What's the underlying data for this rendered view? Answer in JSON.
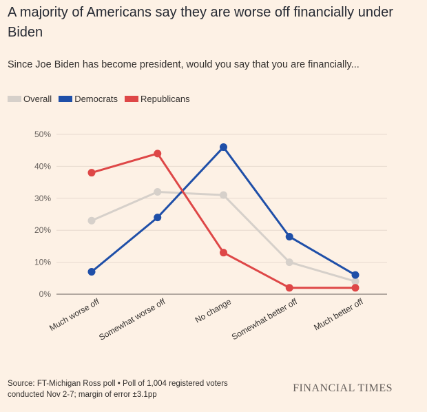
{
  "title": "A majority of Americans say they are worse off financially under Biden",
  "subtitle": "Since Joe Biden has become president, would you say that you are financially...",
  "footer": {
    "source_line1": "Source: FT-Michigan Ross poll • Poll of 1,004 registered voters",
    "source_line2": "conducted Nov 2-7; margin of error ±3.1pp",
    "brand": "FINANCIAL TIMES"
  },
  "chart_data": {
    "type": "line",
    "categories": [
      "Much worse off",
      "Somewhat worse off",
      "No change",
      "Somewhat better off",
      "Much better off"
    ],
    "ylim": [
      0,
      50
    ],
    "yticks": [
      0,
      10,
      20,
      30,
      40,
      50
    ],
    "ytick_labels": [
      "0%",
      "10%",
      "20%",
      "30%",
      "40%",
      "50%"
    ],
    "grid": true,
    "legend_position": "top-left",
    "series": [
      {
        "name": "Overall",
        "color": "#d6d0ca",
        "values": [
          23,
          32,
          31,
          10,
          4
        ]
      },
      {
        "name": "Democrats",
        "color": "#1f4fa8",
        "values": [
          7,
          24,
          46,
          18,
          6
        ]
      },
      {
        "name": "Republicans",
        "color": "#de4747",
        "values": [
          38,
          44,
          13,
          2,
          2
        ]
      }
    ]
  }
}
